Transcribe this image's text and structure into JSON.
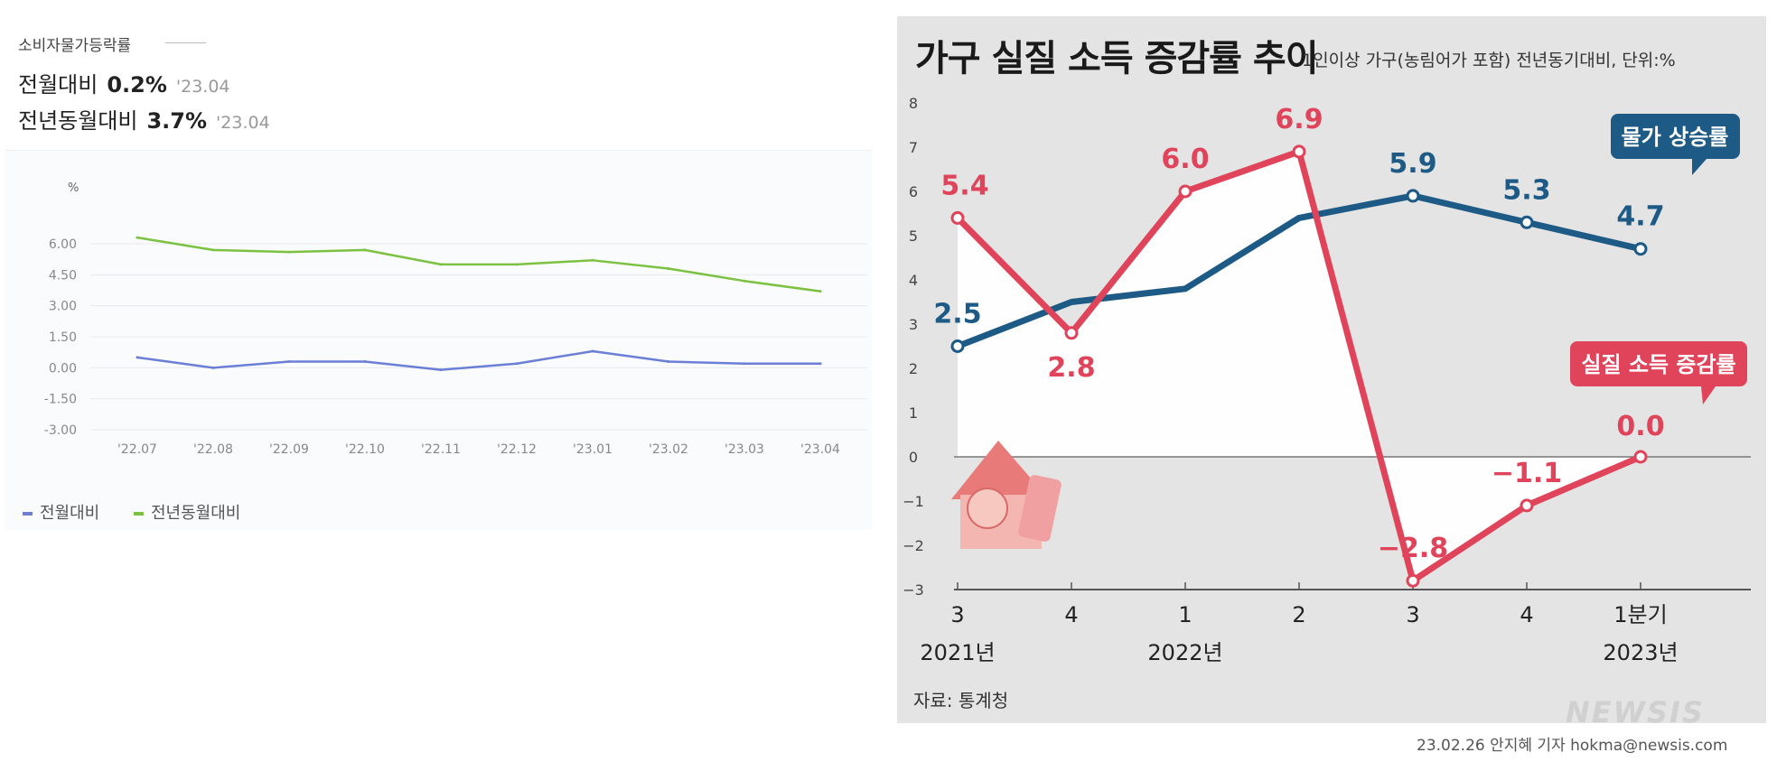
{
  "left_panel": {
    "header_title": "소비자물가등락률",
    "stats": [
      {
        "label": "전월대비",
        "value": "0.2%",
        "date": "'23.04"
      },
      {
        "label": "전년동월대비",
        "value": "3.7%",
        "date": "'23.04"
      }
    ],
    "legend": [
      {
        "label": "전월대비",
        "color": "#6b7fd7"
      },
      {
        "label": "전년동월대비",
        "color": "#7cc242"
      }
    ]
  },
  "right_panel": {
    "title": "가구 실질 소득 증감률 추이",
    "subtitle": "1인이상 가구(농림어가 포함) 전년동기대비, 단위:%",
    "source": "자료: 통계청",
    "logo": "NEWSIS",
    "credit": "23.02.26 안지혜 기자 hokma@newsis.com"
  },
  "chart_data": [
    {
      "type": "line",
      "title": "소비자물가등락률",
      "ylabel": "%",
      "xlabel": "",
      "categories": [
        "'22.07",
        "'22.08",
        "'22.09",
        "'22.10",
        "'22.11",
        "'22.12",
        "'23.01",
        "'23.02",
        "'23.03",
        "'23.04"
      ],
      "yticks": [
        "6.00",
        "4.50",
        "3.00",
        "1.50",
        "0.00",
        "-1.50",
        "-3.00"
      ],
      "ylim": [
        -3,
        6
      ],
      "series": [
        {
          "name": "전월대비",
          "color": "#6b7fd7",
          "values": [
            0.5,
            0.0,
            0.3,
            0.3,
            -0.1,
            0.2,
            0.8,
            0.3,
            0.2,
            0.2
          ]
        },
        {
          "name": "전년동월대비",
          "color": "#7cc242",
          "values": [
            6.3,
            5.7,
            5.6,
            5.7,
            5.0,
            5.0,
            5.2,
            4.8,
            4.2,
            3.7
          ]
        }
      ],
      "legend": "bottom-left",
      "grid": true
    },
    {
      "type": "line",
      "title": "가구 실질 소득 증감률 추이",
      "ylabel": "%",
      "xlabel": "",
      "categories": [
        "3",
        "4",
        "1",
        "2",
        "3",
        "4",
        "1분기"
      ],
      "year_labels": [
        {
          "index": 0,
          "label": "2021년"
        },
        {
          "index": 2,
          "label": "2022년"
        },
        {
          "index": 6,
          "label": "2023년"
        }
      ],
      "yticks": [
        "8",
        "7",
        "6",
        "5",
        "4",
        "3",
        "2",
        "1",
        "0",
        "−1",
        "−2",
        "−3"
      ],
      "ylim": [
        -3,
        8
      ],
      "series": [
        {
          "name": "물가 상승률",
          "color": "#1d5a86",
          "values": [
            2.5,
            3.5,
            3.8,
            5.4,
            5.9,
            5.3,
            4.7
          ],
          "point_labels": [
            "2.5",
            null,
            null,
            null,
            "5.9",
            "5.3",
            "4.7"
          ]
        },
        {
          "name": "실질 소득 증감률",
          "color": "#e0445a",
          "values": [
            5.4,
            2.8,
            6.0,
            6.9,
            -2.8,
            -1.1,
            0.0
          ],
          "point_labels": [
            "5.4",
            "2.8",
            "6.0",
            "6.9",
            "−2.8",
            "−1.1",
            "0.0"
          ]
        }
      ],
      "legend": "callout-right",
      "grid": false
    }
  ]
}
